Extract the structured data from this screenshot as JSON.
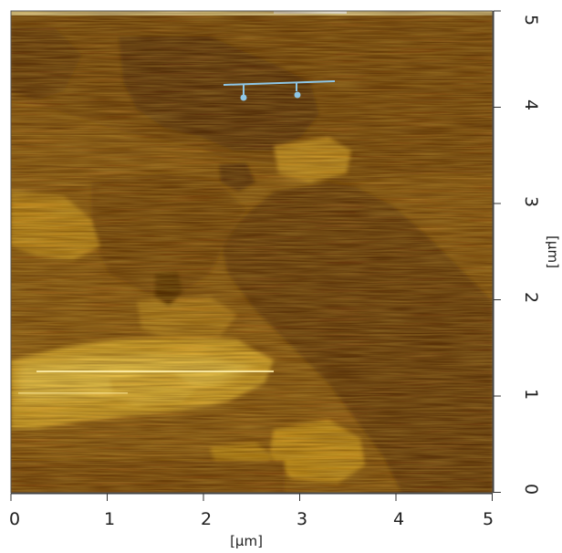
{
  "image": {
    "description_colors": {
      "dark": "#5a3206",
      "mid": "#8a5712",
      "light": "#c99524",
      "bright": "#f4d253",
      "marker": "#8ec6e6"
    }
  },
  "x_axis": {
    "title": "[µm]",
    "ticks": [
      "0",
      "1",
      "2",
      "3",
      "4",
      "5"
    ]
  },
  "y_axis": {
    "title": "[µm]",
    "ticks": [
      "0",
      "1",
      "2",
      "3",
      "4",
      "5"
    ]
  }
}
